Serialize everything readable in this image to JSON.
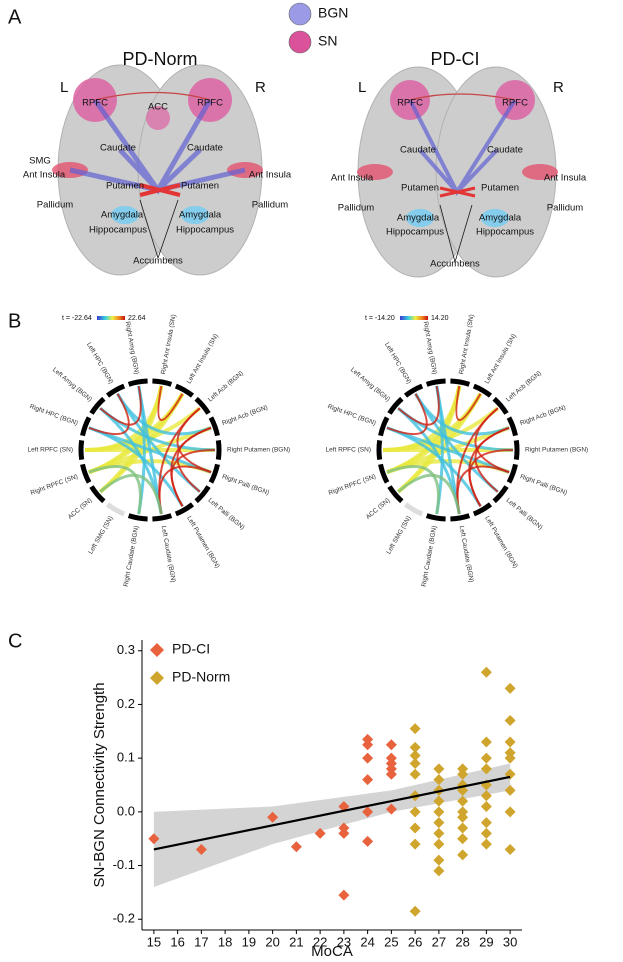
{
  "panel_a": {
    "label": "A",
    "legend": [
      {
        "name": "BGN",
        "color": "#9a9ae6"
      },
      {
        "name": "SN",
        "color": "#d9529a"
      }
    ],
    "brains": [
      {
        "title": "PD-Norm",
        "left": "L",
        "right": "R",
        "regions": [
          "RPFC",
          "ACC",
          "RPFC",
          "Caudate",
          "Caudate",
          "SMG",
          "Ant Insula",
          "Ant Insula",
          "Putamen",
          "Putamen",
          "Pallidum",
          "Pallidum",
          "Amygdala",
          "Amygdala",
          "Hippocampus",
          "Hippocampus",
          "Accumbens"
        ]
      },
      {
        "title": "PD-CI",
        "left": "L",
        "right": "R",
        "regions": [
          "RPFC",
          "RPFC",
          "Caudate",
          "Caudate",
          "Ant Insula",
          "Ant Insula",
          "Putamen",
          "Putamen",
          "Pallidum",
          "Pallidum",
          "Amygdala",
          "Amygdala",
          "Hippocampus",
          "Hippocampus",
          "Accumbens"
        ]
      }
    ]
  },
  "panel_b": {
    "label": "B",
    "circles": [
      {
        "scale_min": "t = -22.64",
        "scale_max": "22.64",
        "nodes": [
          "Right Ant Insula (SN)",
          "Left Ant Insula (SN)",
          "Left Acb (BGN)",
          "Right Acb (BGN)",
          "Right Putamen (BGN)",
          "Right Palli (BGN)",
          "Left Palli (BGN)",
          "Left Putamen (BGN)",
          "Left Caudate (BGN)",
          "Right Caudate (BGN)",
          "Left SMG (SN)",
          "ACC (SN)",
          "Right RPFC (SN)",
          "Left RPFC (SN)",
          "Right HPC (BGN)",
          "Left Amyg (BGN)",
          "Left HPC (BGN)",
          "Right Amyg (BGN)"
        ]
      },
      {
        "scale_min": "t = -14.20",
        "scale_max": "14.20",
        "nodes": [
          "Right Ant Insula (SN)",
          "Left Ant Insula (SN)",
          "Left Acb (BGN)",
          "Right Acb (BGN)",
          "Right Putamen (BGN)",
          "Right Palli (BGN)",
          "Left Palli (BGN)",
          "Left Putamen (BGN)",
          "Left Caudate (BGN)",
          "Right Caudate (BGN)",
          "Left SMG (SN)",
          "ACC (SN)",
          "Right RPFC (SN)",
          "Left RPFC (SN)",
          "Right HPC (BGN)",
          "Left Amyg (BGN)",
          "Left HPC (BGN)",
          "Right Amyg (BGN)"
        ]
      }
    ]
  },
  "chart_data": {
    "type": "scatter",
    "panel_label": "C",
    "x_label": "MoCA",
    "y_label": "SN-BGN Connectivity Strength",
    "xlim": [
      14.5,
      30.5
    ],
    "ylim": [
      -0.22,
      0.32
    ],
    "xticks": [
      15,
      16,
      17,
      18,
      19,
      20,
      21,
      22,
      23,
      24,
      25,
      26,
      27,
      28,
      29,
      30
    ],
    "yticks": [
      -0.2,
      -0.1,
      {
        "value": 0,
        "label": "0.0"
      },
      0.1,
      0.2,
      0.3
    ],
    "series": [
      {
        "name": "PD-CI",
        "color": "#e8623e",
        "x": [
          15,
          17,
          20,
          21,
          22,
          23,
          23,
          23,
          23,
          24,
          24,
          24,
          24,
          24,
          24,
          25,
          25,
          25,
          25,
          25,
          25
        ],
        "y": [
          -0.05,
          -0.07,
          -0.01,
          -0.065,
          -0.04,
          0.01,
          -0.03,
          -0.04,
          -0.155,
          0.135,
          0.125,
          0.1,
          0.06,
          0.0,
          -0.055,
          0.125,
          0.1,
          0.09,
          0.08,
          0.07,
          0.005
        ]
      },
      {
        "name": "PD-Norm",
        "color": "#cfa52d",
        "x": [
          26,
          26,
          26,
          26,
          26,
          26,
          26,
          26,
          26,
          26,
          27,
          27,
          27,
          27,
          27,
          27,
          27,
          27,
          27,
          27,
          28,
          28,
          28,
          28,
          28,
          28,
          28,
          28,
          28,
          28,
          29,
          29,
          29,
          29,
          29,
          29,
          29,
          29,
          29,
          29,
          30,
          30,
          30,
          30,
          30,
          30,
          30,
          30,
          30
        ],
        "y": [
          0.155,
          0.12,
          0.105,
          0.09,
          0.07,
          0.03,
          0.0,
          -0.03,
          -0.06,
          -0.185,
          0.08,
          0.06,
          0.04,
          0.02,
          0.0,
          -0.02,
          -0.04,
          -0.06,
          -0.09,
          -0.11,
          0.08,
          0.07,
          0.05,
          0.04,
          0.02,
          0.0,
          -0.01,
          -0.03,
          -0.05,
          -0.08,
          0.26,
          0.13,
          0.1,
          0.08,
          0.05,
          0.03,
          0.01,
          -0.02,
          -0.04,
          -0.06,
          0.23,
          0.17,
          0.13,
          0.11,
          0.1,
          0.07,
          0.04,
          0.0,
          -0.07
        ]
      }
    ],
    "fit": {
      "x": [
        15,
        30
      ],
      "y": [
        -0.07,
        0.065
      ],
      "color": "#000000"
    },
    "band": {
      "x": [
        15,
        20,
        25,
        30
      ],
      "lower": [
        -0.14,
        -0.06,
        0.0,
        0.04
      ],
      "upper": [
        0.0,
        0.01,
        0.04,
        0.09
      ],
      "color": "#d4d4d4"
    }
  }
}
